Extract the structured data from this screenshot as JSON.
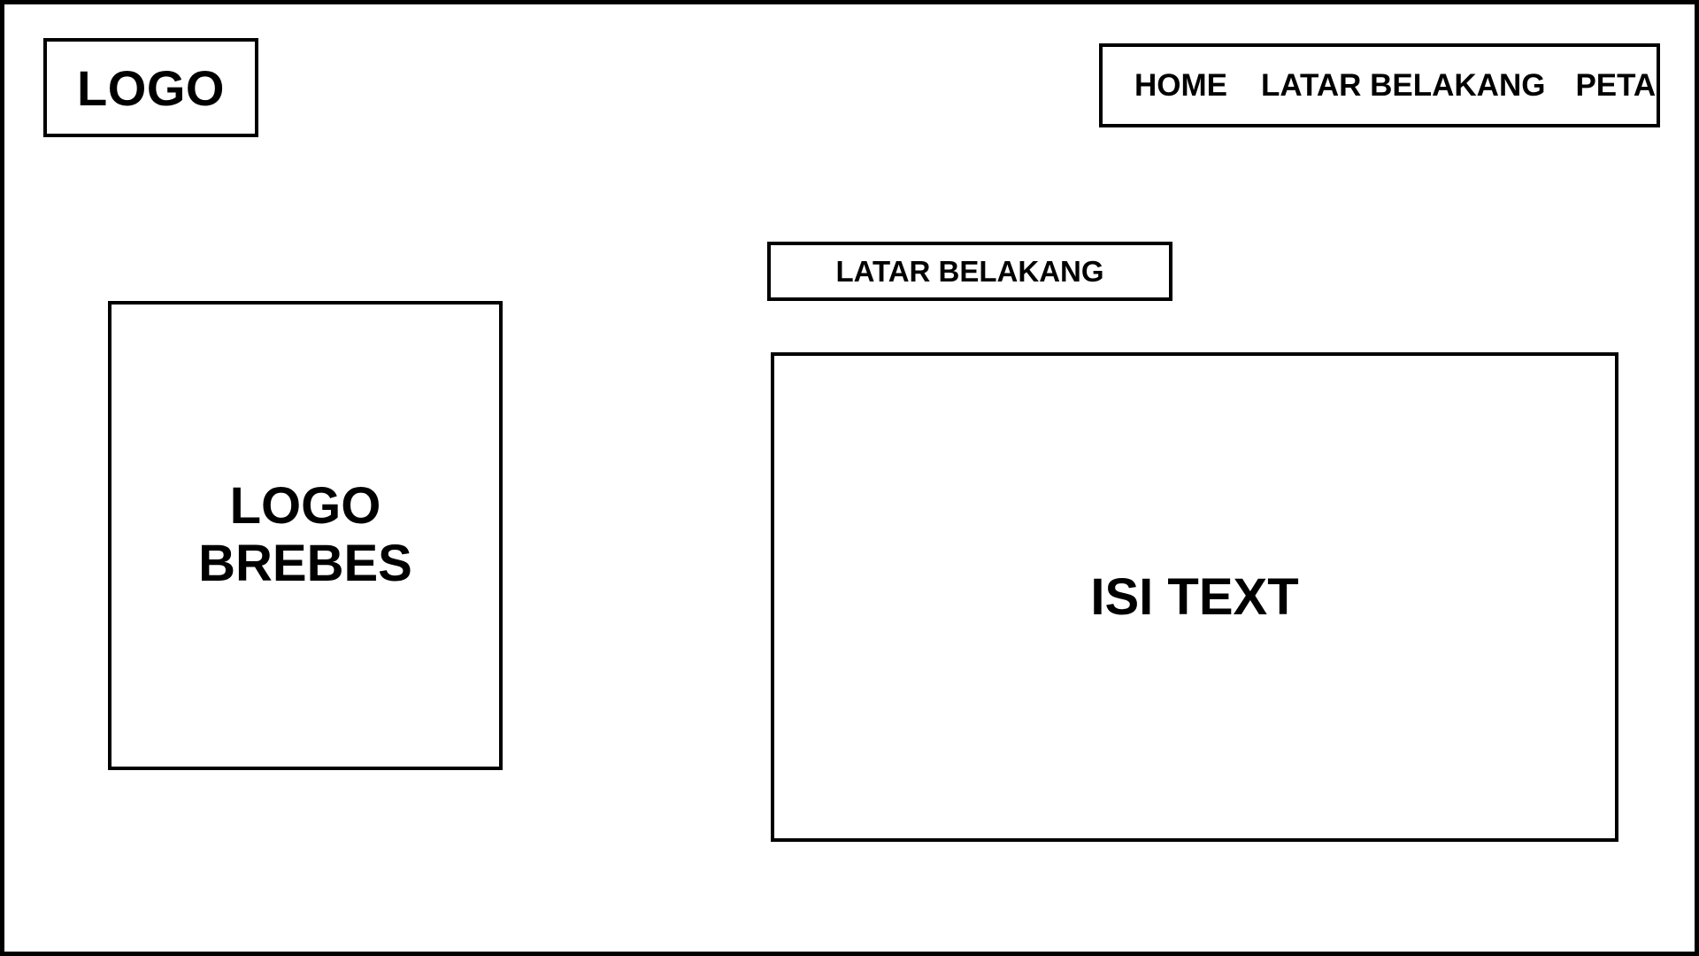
{
  "header": {
    "logo_label": "LOGO",
    "nav": {
      "home": "HOME",
      "latar_belakang": "LATAR BELAKANG",
      "peta": "PETA"
    }
  },
  "main": {
    "section_title": "LATAR BELAKANG",
    "logo_brebes": {
      "line1": "LOGO",
      "line2": "BREBES"
    },
    "content_text": "ISI TEXT"
  }
}
